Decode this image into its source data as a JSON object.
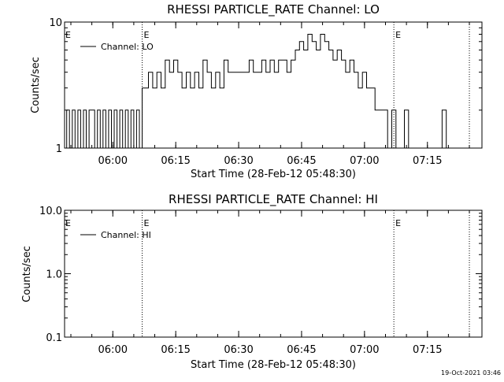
{
  "footer": {
    "timestamp": "19-Oct-2021 03:46"
  },
  "chart_data": [
    {
      "type": "line",
      "title": "RHESSI PARTICLE_RATE Channel: LO",
      "xlabel": "Start Time (28-Feb-12 05:48:30)",
      "ylabel": "Counts/sec",
      "y_scale": "log",
      "ylim": [
        1,
        10
      ],
      "y_ticks": [
        "1",
        "10"
      ],
      "xlim": [
        "05:48:30",
        "07:28:00"
      ],
      "x_ticks": [
        "06:00",
        "06:15",
        "06:30",
        "06:45",
        "07:00",
        "07:15"
      ],
      "legend": {
        "position": "top-left",
        "entries": [
          "Channel: LO"
        ]
      },
      "markers": [
        {
          "time": "06:07",
          "label": "E"
        },
        {
          "time": "07:07",
          "label": "E"
        },
        {
          "time": "07:25",
          "label": ""
        }
      ],
      "series": [
        {
          "name": "Channel: LO",
          "x": [
            "05:48:40",
            "05:49:20",
            "05:50:00",
            "05:50:40",
            "05:51:20",
            "05:52:00",
            "05:52:40",
            "05:53:20",
            "05:54:00",
            "05:54:40",
            "05:55:20",
            "05:56:00",
            "05:56:40",
            "05:57:20",
            "05:58:00",
            "05:58:40",
            "05:59:20",
            "06:00:00",
            "06:00:40",
            "06:01:20",
            "06:02:00",
            "06:02:40",
            "06:03:20",
            "06:04:00",
            "06:04:40",
            "06:05:20",
            "06:06:00",
            "06:06:40",
            "06:07:20",
            "06:08:00",
            "06:09:00",
            "06:10:00",
            "06:11:00",
            "06:12:00",
            "06:13:00",
            "06:14:00",
            "06:15:00",
            "06:16:00",
            "06:17:00",
            "06:18:00",
            "06:19:00",
            "06:20:00",
            "06:21:00",
            "06:22:00",
            "06:23:00",
            "06:24:00",
            "06:25:00",
            "06:26:00",
            "06:27:00",
            "06:28:00",
            "06:29:00",
            "06:30:00",
            "06:31:00",
            "06:32:00",
            "06:33:00",
            "06:34:00",
            "06:35:00",
            "06:36:00",
            "06:37:00",
            "06:38:00",
            "06:39:00",
            "06:40:00",
            "06:41:00",
            "06:42:00",
            "06:43:00",
            "06:44:00",
            "06:45:00",
            "06:46:00",
            "06:47:00",
            "06:48:00",
            "06:49:00",
            "06:50:00",
            "06:51:00",
            "06:52:00",
            "06:53:00",
            "06:54:00",
            "06:55:00",
            "06:56:00",
            "06:57:00",
            "06:58:00",
            "06:59:00",
            "07:00:00",
            "07:01:00",
            "07:02:00",
            "07:03:00",
            "07:04:00",
            "07:05:00",
            "07:06:00",
            "07:07:00",
            "07:08:00",
            "07:09:00",
            "07:10:00",
            "07:11:00",
            "07:12:00",
            "07:13:00",
            "07:14:00",
            "07:15:00",
            "07:16:00",
            "07:17:00",
            "07:18:00",
            "07:19:00",
            "07:20:00",
            "07:21:00",
            "07:22:00",
            "07:23:00",
            "07:24:00"
          ],
          "y": [
            1,
            2,
            1,
            2,
            1,
            2,
            1,
            2,
            1,
            2,
            2,
            1,
            2,
            1,
            2,
            1,
            2,
            1,
            2,
            1,
            2,
            1,
            2,
            1,
            2,
            1,
            2,
            1,
            3,
            3,
            4,
            3,
            4,
            3,
            5,
            4,
            5,
            4,
            3,
            4,
            3,
            4,
            3,
            5,
            4,
            3,
            4,
            3,
            5,
            4,
            4,
            4,
            4,
            4,
            5,
            4,
            4,
            5,
            4,
            5,
            4,
            5,
            5,
            4,
            5,
            6,
            7,
            6,
            8,
            7,
            6,
            8,
            7,
            6,
            5,
            6,
            5,
            4,
            5,
            4,
            3,
            4,
            3,
            3,
            2,
            2,
            2,
            1,
            2,
            1,
            1,
            2,
            1,
            1,
            1,
            1,
            1,
            1,
            1,
            1,
            2,
            1,
            1,
            1,
            1,
            1
          ]
        }
      ]
    },
    {
      "type": "line",
      "title": "RHESSI PARTICLE_RATE Channel: HI",
      "xlabel": "Start Time (28-Feb-12 05:48:30)",
      "ylabel": "Counts/sec",
      "y_scale": "log",
      "ylim": [
        0.1,
        10
      ],
      "y_ticks": [
        "0.1",
        "1.0",
        "10.0"
      ],
      "xlim": [
        "05:48:30",
        "07:28:00"
      ],
      "x_ticks": [
        "06:00",
        "06:15",
        "06:30",
        "06:45",
        "07:00",
        "07:15"
      ],
      "legend": {
        "position": "top-left",
        "entries": [
          "Channel: HI"
        ]
      },
      "markers": [
        {
          "time": "06:07",
          "label": "E"
        },
        {
          "time": "07:07",
          "label": "E"
        },
        {
          "time": "07:25",
          "label": ""
        }
      ],
      "series": [
        {
          "name": "Channel: HI",
          "x": [],
          "y": []
        }
      ]
    }
  ]
}
